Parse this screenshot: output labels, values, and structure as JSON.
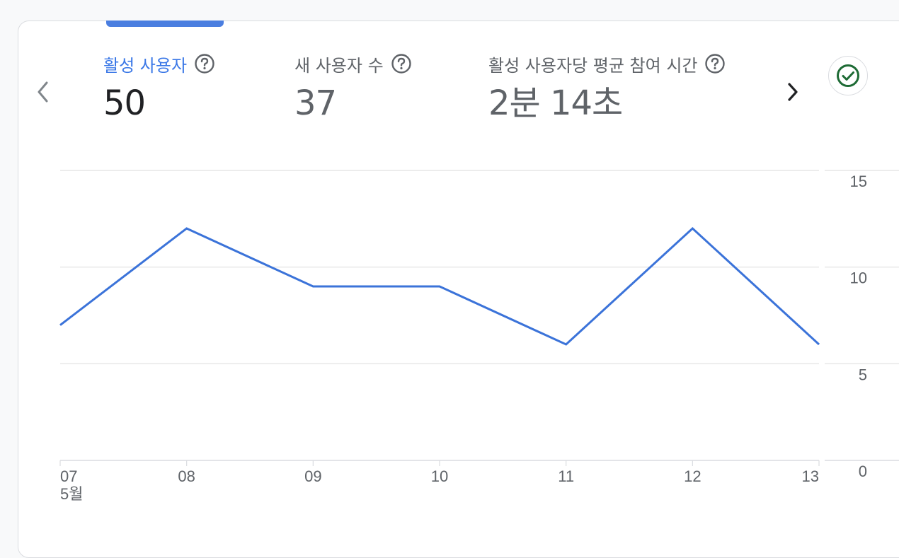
{
  "metrics": [
    {
      "label": "활성 사용자",
      "value": "50",
      "active": true
    },
    {
      "label": "새 사용자 수",
      "value": "37",
      "active": false
    },
    {
      "label": "활성 사용자당 평균 참여 시간",
      "value": "2분 14초",
      "active": false
    }
  ],
  "icons": {
    "prev": "chevron-left-icon",
    "next": "chevron-right-icon",
    "help": "help-circle-icon",
    "status": "check-circle-icon"
  },
  "colors": {
    "accent": "#3b78e7",
    "line": "#3b73d9",
    "status_green": "#1e6b35"
  },
  "chart_data": {
    "type": "line",
    "categories": [
      "07",
      "08",
      "09",
      "10",
      "11",
      "12",
      "13"
    ],
    "month_label": "5월",
    "series": [
      {
        "values": [
          7,
          12,
          9,
          9,
          6,
          12,
          6
        ]
      }
    ],
    "ylim": [
      0,
      15
    ],
    "yticks": [
      0,
      5,
      10,
      15
    ],
    "y_axis_side": "right",
    "grid": true
  }
}
